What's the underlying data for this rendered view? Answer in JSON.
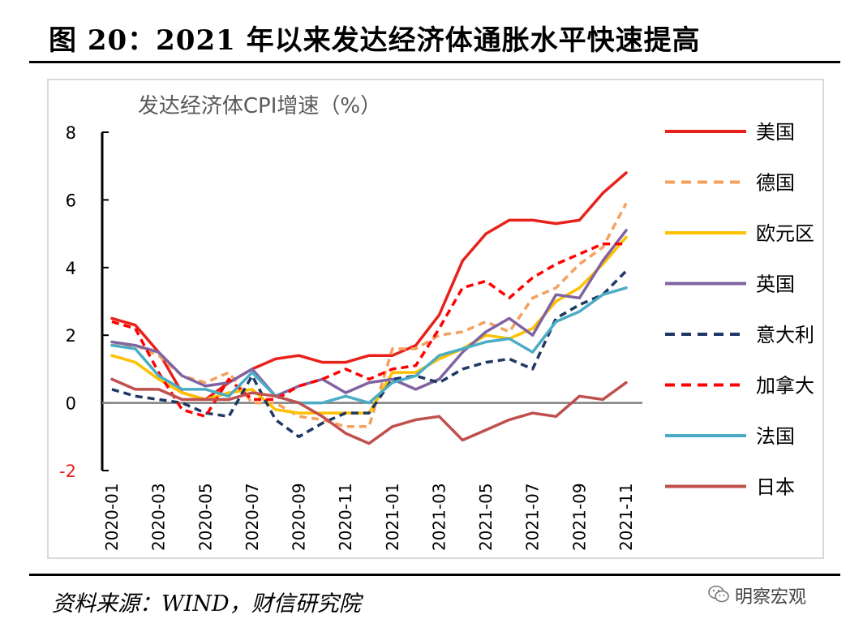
{
  "figure": {
    "title": "图 20：2021 年以来发达经济体通胀水平快速提高",
    "source": "资料来源：WIND，财信研究院",
    "watermark": "明察宏观"
  },
  "chart_data": {
    "type": "line",
    "title": "发达经济体CPI增速（%）",
    "xlabel": "",
    "ylabel": "",
    "ylim": [
      -2,
      8
    ],
    "yticks": [
      -2,
      0,
      2,
      4,
      6,
      8
    ],
    "x": [
      "2020-01",
      "2020-02",
      "2020-03",
      "2020-04",
      "2020-05",
      "2020-06",
      "2020-07",
      "2020-08",
      "2020-09",
      "2020-10",
      "2020-11",
      "2020-12",
      "2021-01",
      "2021-02",
      "2021-03",
      "2021-04",
      "2021-05",
      "2021-06",
      "2021-07",
      "2021-08",
      "2021-09",
      "2021-10",
      "2021-11"
    ],
    "xtick_labels": [
      "2020-01",
      "2020-03",
      "2020-05",
      "2020-07",
      "2020-09",
      "2020-11",
      "2021-01",
      "2021-03",
      "2021-05",
      "2021-07",
      "2021-09",
      "2021-11"
    ],
    "legend_position": "right",
    "grid": false,
    "series": [
      {
        "name": "美国",
        "color": "#e8211b",
        "dash": "solid",
        "values": [
          2.5,
          2.3,
          1.5,
          0.3,
          0.1,
          0.6,
          1.0,
          1.3,
          1.4,
          1.2,
          1.2,
          1.4,
          1.4,
          1.7,
          2.6,
          4.2,
          5.0,
          5.4,
          5.4,
          5.3,
          5.4,
          6.2,
          6.8
        ]
      },
      {
        "name": "德国",
        "color": "#f4a15d",
        "dash": "dashed",
        "values": [
          1.7,
          1.7,
          1.4,
          0.8,
          0.6,
          0.9,
          0.0,
          0.0,
          -0.4,
          -0.5,
          -0.7,
          -0.7,
          1.6,
          1.6,
          2.0,
          2.1,
          2.4,
          2.1,
          3.1,
          3.4,
          4.1,
          4.6,
          5.9
        ]
      },
      {
        "name": "欧元区",
        "color": "#fec000",
        "dash": "solid",
        "values": [
          1.4,
          1.2,
          0.7,
          0.3,
          0.1,
          0.3,
          0.4,
          -0.2,
          -0.3,
          -0.3,
          -0.3,
          -0.3,
          0.9,
          0.9,
          1.3,
          1.6,
          2.0,
          1.9,
          2.2,
          3.0,
          3.4,
          4.1,
          4.9
        ]
      },
      {
        "name": "英国",
        "color": "#8064a2",
        "dash": "solid",
        "values": [
          1.8,
          1.7,
          1.5,
          0.8,
          0.5,
          0.6,
          1.0,
          0.2,
          0.5,
          0.7,
          0.3,
          0.6,
          0.7,
          0.4,
          0.7,
          1.5,
          2.1,
          2.5,
          2.0,
          3.2,
          3.1,
          4.2,
          5.1
        ]
      },
      {
        "name": "意大利",
        "color": "#1f3864",
        "dash": "dashed",
        "values": [
          0.4,
          0.2,
          0.1,
          0.0,
          -0.3,
          -0.4,
          0.8,
          -0.5,
          -1.0,
          -0.6,
          -0.3,
          -0.3,
          0.7,
          0.8,
          0.6,
          1.0,
          1.2,
          1.3,
          1.0,
          2.5,
          2.9,
          3.2,
          3.9
        ]
      },
      {
        "name": "加拿大",
        "color": "#ff0000",
        "dash": "dashed",
        "values": [
          2.4,
          2.2,
          0.9,
          -0.2,
          -0.4,
          0.7,
          0.1,
          0.1,
          0.5,
          0.7,
          1.0,
          0.7,
          1.0,
          1.1,
          2.2,
          3.4,
          3.6,
          3.1,
          3.7,
          4.1,
          4.4,
          4.7,
          4.7
        ]
      },
      {
        "name": "法国",
        "color": "#4bacc6",
        "dash": "solid",
        "values": [
          1.7,
          1.6,
          0.8,
          0.4,
          0.4,
          0.2,
          0.9,
          0.2,
          0.0,
          0.0,
          0.2,
          0.0,
          0.6,
          0.8,
          1.4,
          1.6,
          1.8,
          1.9,
          1.5,
          2.4,
          2.7,
          3.2,
          3.4
        ]
      },
      {
        "name": "日本",
        "color": "#c0504d",
        "dash": "solid",
        "values": [
          0.7,
          0.4,
          0.4,
          0.1,
          0.1,
          0.1,
          0.3,
          0.2,
          0.0,
          -0.4,
          -0.9,
          -1.2,
          -0.7,
          -0.5,
          -0.4,
          -1.1,
          -0.8,
          -0.5,
          -0.3,
          -0.4,
          0.2,
          0.1,
          0.6
        ]
      }
    ]
  }
}
